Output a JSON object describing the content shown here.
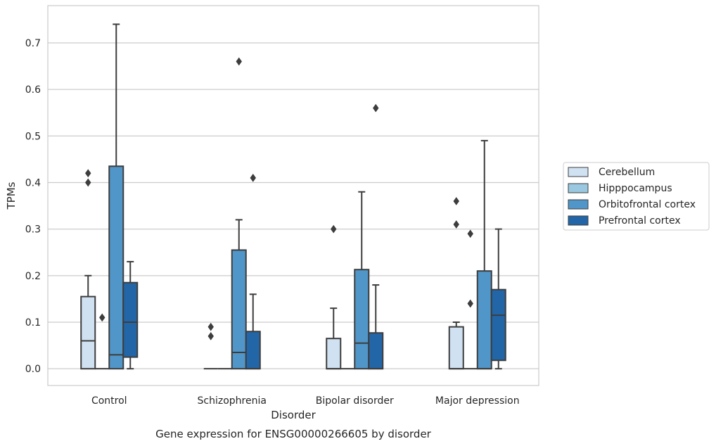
{
  "chart_data": {
    "type": "box",
    "title": "",
    "caption": "Gene expression for ENSG00000266605 by disorder",
    "xlabel": "Disorder",
    "ylabel": "TPMs",
    "ylim": [
      -0.036,
      0.78
    ],
    "yticks": [
      0.0,
      0.1,
      0.2,
      0.3,
      0.4,
      0.5,
      0.6,
      0.7
    ],
    "ytick_labels": [
      "0.0",
      "0.1",
      "0.2",
      "0.3",
      "0.4",
      "0.5",
      "0.6",
      "0.7"
    ],
    "grid": "horizontal",
    "legend_position": "right",
    "categories": [
      "Control",
      "Schizophrenia",
      "Bipolar disorder",
      "Major depression"
    ],
    "series": [
      {
        "name": "Cerebellum",
        "color": "#d0e1f2",
        "boxes": [
          {
            "whislo": 0.0,
            "q1": 0.0,
            "med": 0.06,
            "q3": 0.155,
            "whishi": 0.2,
            "fliers": [
              0.4,
              0.42
            ]
          },
          {
            "whislo": 0.0,
            "q1": 0.0,
            "med": 0.0,
            "q3": 0.0,
            "whishi": 0.0,
            "fliers": [
              0.07,
              0.09
            ]
          },
          {
            "whislo": 0.0,
            "q1": 0.0,
            "med": 0.0,
            "q3": 0.065,
            "whishi": 0.13,
            "fliers": [
              0.3
            ]
          },
          {
            "whislo": 0.0,
            "q1": 0.0,
            "med": 0.0,
            "q3": 0.09,
            "whishi": 0.1,
            "fliers": [
              0.31,
              0.36
            ]
          }
        ]
      },
      {
        "name": "Hipppocampus",
        "color": "#9ac8e0",
        "boxes": [
          {
            "whislo": 0.0,
            "q1": 0.0,
            "med": 0.0,
            "q3": 0.0,
            "whishi": 0.0,
            "fliers": [
              0.11
            ]
          },
          {
            "whislo": 0.0,
            "q1": 0.0,
            "med": 0.0,
            "q3": 0.0,
            "whishi": 0.0,
            "fliers": []
          },
          {
            "whislo": 0.0,
            "q1": 0.0,
            "med": 0.0,
            "q3": 0.0,
            "whishi": 0.0,
            "fliers": []
          },
          {
            "whislo": 0.0,
            "q1": 0.0,
            "med": 0.0,
            "q3": 0.0,
            "whishi": 0.0,
            "fliers": [
              0.14,
              0.29
            ]
          }
        ]
      },
      {
        "name": "Orbitofrontal cortex",
        "color": "#5196c8",
        "boxes": [
          {
            "whislo": 0.0,
            "q1": 0.0,
            "med": 0.03,
            "q3": 0.435,
            "whishi": 0.74,
            "fliers": []
          },
          {
            "whislo": 0.0,
            "q1": 0.0,
            "med": 0.035,
            "q3": 0.255,
            "whishi": 0.32,
            "fliers": [
              0.66
            ]
          },
          {
            "whislo": 0.0,
            "q1": 0.0,
            "med": 0.055,
            "q3": 0.213,
            "whishi": 0.38,
            "fliers": []
          },
          {
            "whislo": 0.0,
            "q1": 0.0,
            "med": 0.0,
            "q3": 0.21,
            "whishi": 0.49,
            "fliers": []
          }
        ]
      },
      {
        "name": "Prefrontal cortex",
        "color": "#2366a8",
        "boxes": [
          {
            "whislo": 0.0,
            "q1": 0.025,
            "med": 0.1,
            "q3": 0.185,
            "whishi": 0.23,
            "fliers": []
          },
          {
            "whislo": 0.0,
            "q1": 0.0,
            "med": 0.0,
            "q3": 0.08,
            "whishi": 0.16,
            "fliers": [
              0.41
            ]
          },
          {
            "whislo": 0.0,
            "q1": 0.0,
            "med": 0.0,
            "q3": 0.077,
            "whishi": 0.18,
            "fliers": [
              0.56
            ]
          },
          {
            "whislo": 0.0,
            "q1": 0.018,
            "med": 0.115,
            "q3": 0.17,
            "whishi": 0.3,
            "fliers": []
          }
        ]
      }
    ]
  }
}
